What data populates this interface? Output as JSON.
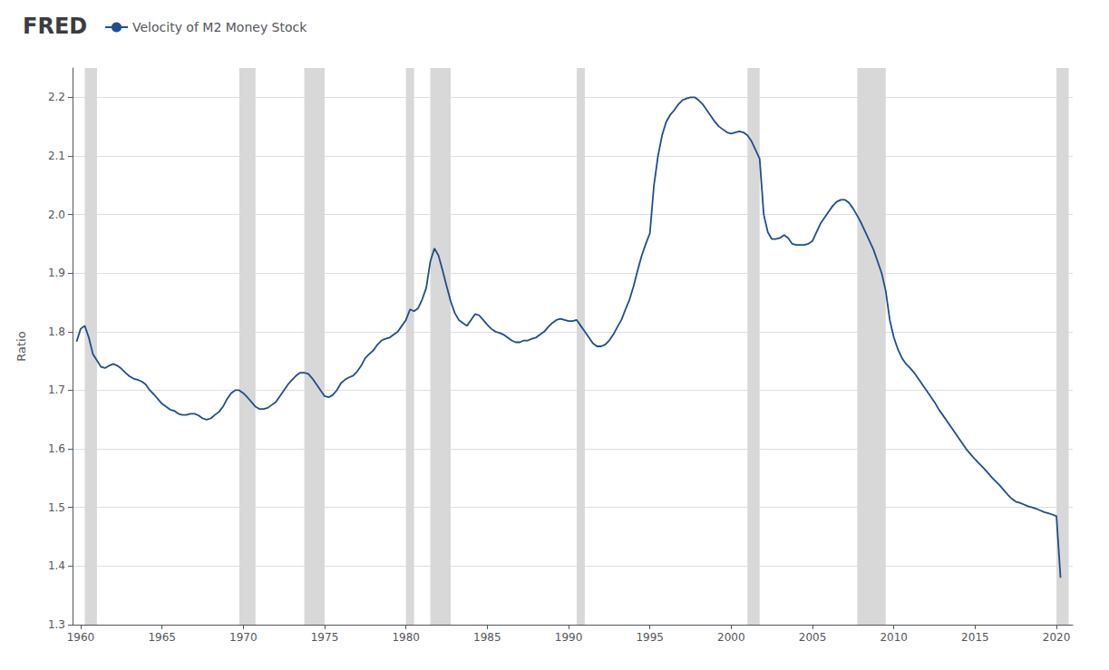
{
  "chart_data": {
    "type": "line",
    "title": "FRED",
    "ylabel": "Ratio",
    "xlim": [
      1959.5,
      2021.0
    ],
    "xticks": [
      1960,
      1965,
      1970,
      1975,
      1980,
      1985,
      1990,
      1995,
      2000,
      2005,
      2010,
      2015,
      2020
    ],
    "ylim": [
      1.3,
      2.25
    ],
    "yticks": [
      1.3,
      1.4,
      1.5,
      1.6,
      1.7,
      1.8,
      1.9,
      {
        "value": 2.0,
        "label": "2.0"
      },
      2.1,
      2.2
    ],
    "grid": "y",
    "legend": "top-left",
    "recessions": {
      "color": "#d8d8d8",
      "ranges": [
        [
          1960.25,
          1961.0
        ],
        [
          1969.75,
          1970.75
        ],
        [
          1973.75,
          1975.0
        ],
        [
          1980.0,
          1980.5
        ],
        [
          1981.5,
          1982.75
        ],
        [
          1990.5,
          1991.0
        ],
        [
          2001.0,
          2001.75
        ],
        [
          2007.75,
          2009.5
        ],
        [
          2020.0,
          2020.75
        ]
      ]
    },
    "x": [
      1959.75,
      1960.0,
      1960.25,
      1960.5,
      1960.75,
      1961.0,
      1961.25,
      1961.5,
      1961.75,
      1962.0,
      1962.25,
      1962.5,
      1962.75,
      1963.0,
      1963.25,
      1963.5,
      1963.75,
      1964.0,
      1964.25,
      1964.5,
      1964.75,
      1965.0,
      1965.25,
      1965.5,
      1965.75,
      1966.0,
      1966.25,
      1966.5,
      1966.75,
      1967.0,
      1967.25,
      1967.5,
      1967.75,
      1968.0,
      1968.25,
      1968.5,
      1968.75,
      1969.0,
      1969.25,
      1969.5,
      1969.75,
      1970.0,
      1970.25,
      1970.5,
      1970.75,
      1971.0,
      1971.25,
      1971.5,
      1971.75,
      1972.0,
      1972.25,
      1972.5,
      1972.75,
      1973.0,
      1973.25,
      1973.5,
      1973.75,
      1974.0,
      1974.25,
      1974.5,
      1974.75,
      1975.0,
      1975.25,
      1975.5,
      1975.75,
      1976.0,
      1976.25,
      1976.5,
      1976.75,
      1977.0,
      1977.25,
      1977.5,
      1977.75,
      1978.0,
      1978.25,
      1978.5,
      1978.75,
      1979.0,
      1979.25,
      1979.5,
      1979.75,
      1980.0,
      1980.25,
      1980.5,
      1980.75,
      1981.0,
      1981.25,
      1981.5,
      1981.75,
      1982.0,
      1982.25,
      1982.5,
      1982.75,
      1983.0,
      1983.25,
      1983.5,
      1983.75,
      1984.0,
      1984.25,
      1984.5,
      1984.75,
      1985.0,
      1985.25,
      1985.5,
      1985.75,
      1986.0,
      1986.25,
      1986.5,
      1986.75,
      1987.0,
      1987.25,
      1987.5,
      1987.75,
      1988.0,
      1988.25,
      1988.5,
      1988.75,
      1989.0,
      1989.25,
      1989.5,
      1989.75,
      1990.0,
      1990.25,
      1990.5,
      1990.75,
      1991.0,
      1991.25,
      1991.5,
      1991.75,
      1992.0,
      1992.25,
      1992.5,
      1992.75,
      1993.0,
      1993.25,
      1993.5,
      1993.75,
      1994.0,
      1994.25,
      1994.5,
      1994.75,
      1995.0,
      1995.25,
      1995.5,
      1995.75,
      1996.0,
      1996.25,
      1996.5,
      1996.75,
      1997.0,
      1997.25,
      1997.5,
      1997.75,
      1998.0,
      1998.25,
      1998.5,
      1998.75,
      1999.0,
      1999.25,
      1999.5,
      1999.75,
      2000.0,
      2000.25,
      2000.5,
      2000.75,
      2001.0,
      2001.25,
      2001.5,
      2001.75,
      2002.0,
      2002.25,
      2002.5,
      2002.75,
      2003.0,
      2003.25,
      2003.5,
      2003.75,
      2004.0,
      2004.25,
      2004.5,
      2004.75,
      2005.0,
      2005.25,
      2005.5,
      2005.75,
      2006.0,
      2006.25,
      2006.5,
      2006.75,
      2007.0,
      2007.25,
      2007.5,
      2007.75,
      2008.0,
      2008.25,
      2008.5,
      2008.75,
      2009.0,
      2009.25,
      2009.5,
      2009.75,
      2010.0,
      2010.25,
      2010.5,
      2010.75,
      2011.0,
      2011.25,
      2011.5,
      2011.75,
      2012.0,
      2012.25,
      2012.5,
      2012.75,
      2013.0,
      2013.25,
      2013.5,
      2013.75,
      2014.0,
      2014.25,
      2014.5,
      2014.75,
      2015.0,
      2015.25,
      2015.5,
      2015.75,
      2016.0,
      2016.25,
      2016.5,
      2016.75,
      2017.0,
      2017.25,
      2017.5,
      2017.75,
      2018.0,
      2018.25,
      2018.5,
      2018.75,
      2019.0,
      2019.25,
      2019.5,
      2019.75,
      2020.0,
      2020.25
    ],
    "series": [
      {
        "name": "Velocity of M2 Money Stock",
        "color": "#1f4e8c",
        "values": [
          1.783,
          1.805,
          1.81,
          1.79,
          1.762,
          1.751,
          1.74,
          1.738,
          1.742,
          1.745,
          1.742,
          1.737,
          1.73,
          1.724,
          1.72,
          1.718,
          1.715,
          1.71,
          1.7,
          1.693,
          1.685,
          1.677,
          1.672,
          1.667,
          1.665,
          1.66,
          1.658,
          1.658,
          1.66,
          1.66,
          1.657,
          1.652,
          1.65,
          1.652,
          1.658,
          1.663,
          1.672,
          1.685,
          1.695,
          1.7,
          1.7,
          1.695,
          1.688,
          1.68,
          1.672,
          1.668,
          1.668,
          1.67,
          1.675,
          1.68,
          1.69,
          1.7,
          1.71,
          1.718,
          1.725,
          1.73,
          1.73,
          1.728,
          1.72,
          1.71,
          1.7,
          1.69,
          1.688,
          1.692,
          1.7,
          1.712,
          1.718,
          1.722,
          1.725,
          1.732,
          1.742,
          1.755,
          1.762,
          1.768,
          1.778,
          1.785,
          1.788,
          1.79,
          1.795,
          1.8,
          1.81,
          1.82,
          1.838,
          1.835,
          1.84,
          1.855,
          1.875,
          1.92,
          1.942,
          1.93,
          1.905,
          1.878,
          1.852,
          1.832,
          1.82,
          1.815,
          1.81,
          1.82,
          1.83,
          1.828,
          1.82,
          1.812,
          1.805,
          1.8,
          1.798,
          1.795,
          1.79,
          1.785,
          1.782,
          1.782,
          1.785,
          1.785,
          1.788,
          1.79,
          1.795,
          1.8,
          1.808,
          1.815,
          1.82,
          1.822,
          1.82,
          1.818,
          1.818,
          1.82,
          1.81,
          1.8,
          1.79,
          1.78,
          1.775,
          1.775,
          1.778,
          1.785,
          1.795,
          1.808,
          1.82,
          1.838,
          1.855,
          1.878,
          1.905,
          1.93,
          1.95,
          1.968,
          2.05,
          2.1,
          2.135,
          2.158,
          2.17,
          2.178,
          2.188,
          2.195,
          2.198,
          2.2,
          2.2,
          2.195,
          2.188,
          2.178,
          2.168,
          2.158,
          2.15,
          2.145,
          2.14,
          2.138,
          2.14,
          2.142,
          2.14,
          2.135,
          2.125,
          2.11,
          2.095,
          2.0,
          1.97,
          1.958,
          1.958,
          1.96,
          1.965,
          1.96,
          1.95,
          1.948,
          1.948,
          1.948,
          1.95,
          1.955,
          1.97,
          1.985,
          1.995,
          2.005,
          2.015,
          2.022,
          2.025,
          2.025,
          2.02,
          2.01,
          1.998,
          1.985,
          1.97,
          1.955,
          1.94,
          1.92,
          1.9,
          1.87,
          1.82,
          1.79,
          1.77,
          1.755,
          1.745,
          1.738,
          1.73,
          1.72,
          1.71,
          1.7,
          1.69,
          1.68,
          1.668,
          1.658,
          1.648,
          1.638,
          1.628,
          1.618,
          1.608,
          1.598,
          1.59,
          1.582,
          1.575,
          1.568,
          1.56,
          1.552,
          1.545,
          1.538,
          1.53,
          1.522,
          1.515,
          1.51,
          1.508,
          1.505,
          1.502,
          1.5,
          1.498,
          1.495,
          1.492,
          1.49,
          1.488,
          1.485,
          1.38
        ]
      }
    ]
  }
}
